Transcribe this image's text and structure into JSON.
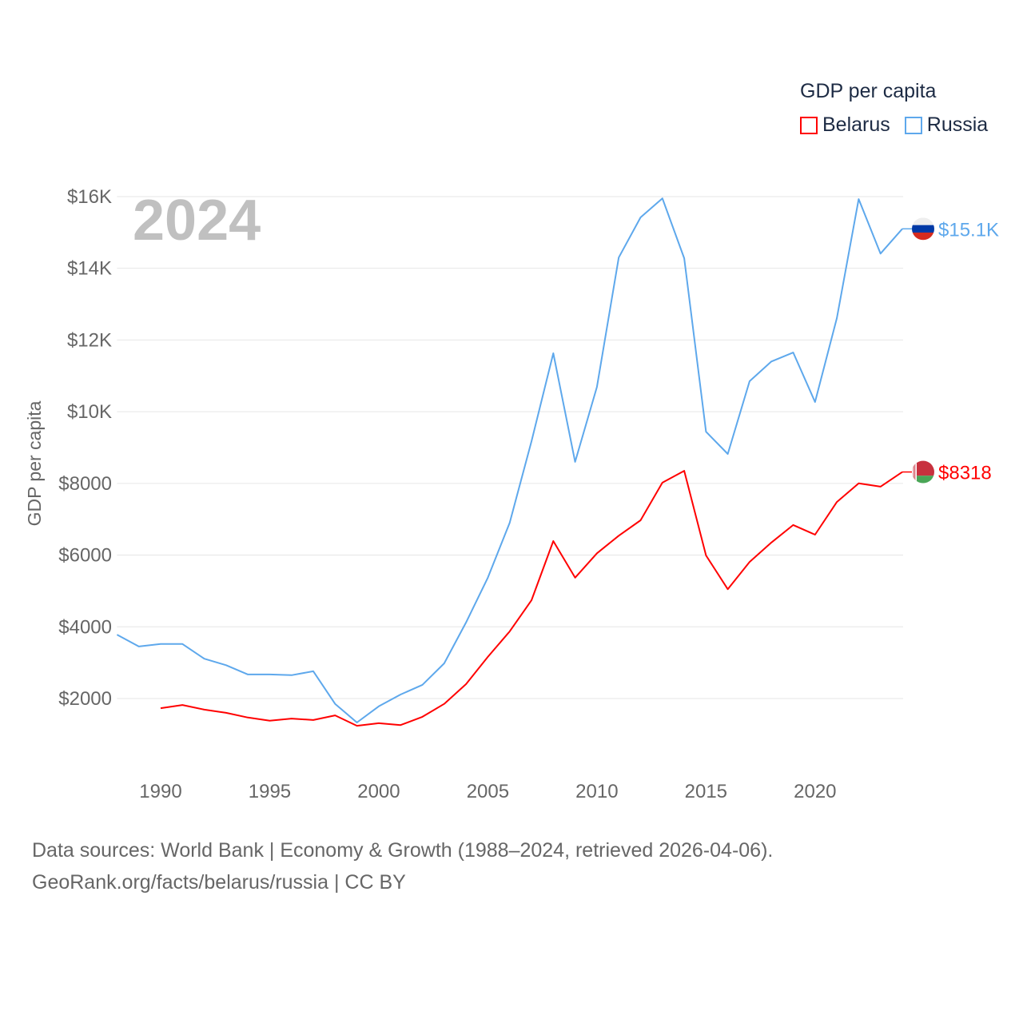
{
  "chart_data": {
    "type": "line",
    "title": "GDP per capita",
    "ylabel": "GDP per capita",
    "xlabel": "",
    "year_label": "2024",
    "ylim": [
      0,
      16500
    ],
    "xlim": [
      1988,
      2024
    ],
    "yticks": [
      2000,
      4000,
      6000,
      8000,
      10000,
      12000,
      14000,
      16000
    ],
    "ytick_labels": [
      "$2000",
      "$4000",
      "$6000",
      "$8000",
      "$10K",
      "$12K",
      "$14K",
      "$16K"
    ],
    "xticks": [
      1990,
      1995,
      2000,
      2005,
      2010,
      2015,
      2020
    ],
    "xtick_labels": [
      "1990",
      "1995",
      "2000",
      "2005",
      "2010",
      "2015",
      "2020"
    ],
    "grid": true,
    "legend_position": "top-right",
    "series": [
      {
        "name": "Belarus",
        "color": "#ff0000",
        "end_label": "$8318",
        "x": [
          1990,
          1991,
          1992,
          1993,
          1994,
          1995,
          1996,
          1997,
          1998,
          1999,
          2000,
          2001,
          2002,
          2003,
          2004,
          2005,
          2006,
          2007,
          2008,
          2009,
          2010,
          2011,
          2012,
          2013,
          2014,
          2015,
          2016,
          2017,
          2018,
          2019,
          2020,
          2021,
          2022,
          2023,
          2024
        ],
        "values": [
          1730,
          1820,
          1690,
          1600,
          1470,
          1380,
          1440,
          1400,
          1530,
          1240,
          1310,
          1260,
          1490,
          1850,
          2400,
          3160,
          3870,
          4740,
          6390,
          5370,
          6050,
          6540,
          6970,
          8020,
          8350,
          5990,
          5050,
          5810,
          6350,
          6840,
          6570,
          7480,
          8000,
          7910,
          8318
        ]
      },
      {
        "name": "Russia",
        "color": "#5ea8ec",
        "end_label": "$15.1K",
        "x": [
          1988,
          1989,
          1990,
          1991,
          1992,
          1993,
          1994,
          1995,
          1996,
          1997,
          1998,
          1999,
          2000,
          2001,
          2002,
          2003,
          2004,
          2005,
          2006,
          2007,
          2008,
          2009,
          2010,
          2011,
          2012,
          2013,
          2014,
          2015,
          2016,
          2017,
          2018,
          2019,
          2020,
          2021,
          2022,
          2023,
          2024
        ],
        "values": [
          3780,
          3450,
          3520,
          3520,
          3110,
          2930,
          2670,
          2670,
          2650,
          2760,
          1850,
          1330,
          1780,
          2110,
          2380,
          2980,
          4120,
          5370,
          6900,
          9170,
          11630,
          8600,
          10690,
          14300,
          15420,
          15950,
          14280,
          9440,
          8820,
          10850,
          11400,
          11650,
          10270,
          12610,
          15930,
          14410,
          15100
        ]
      }
    ]
  },
  "footer": {
    "line1": "Data sources: World Bank | Economy & Growth (1988–2024, retrieved 2026-04-06).",
    "line2": "GeoRank.org/facts/belarus/russia | CC BY"
  }
}
